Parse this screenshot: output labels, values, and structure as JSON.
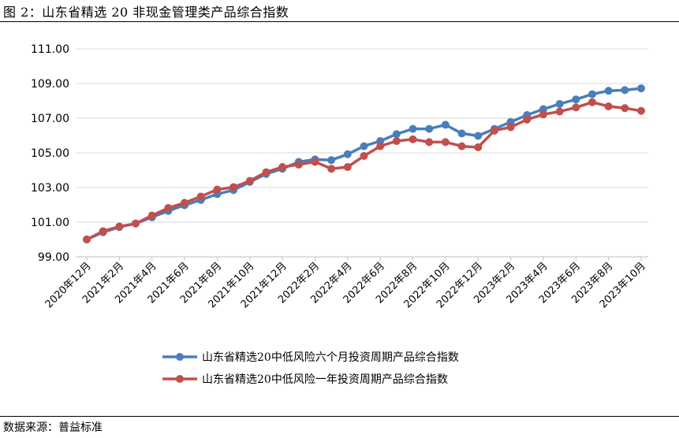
{
  "figure": {
    "title": "图 2：山东省精选 20 非现金管理类产品综合指数",
    "source": "数据来源：普益标准"
  },
  "chart_data": {
    "type": "line",
    "ylim": [
      99.0,
      111.0
    ],
    "y_ticks": [
      "111.00",
      "109.00",
      "107.00",
      "105.00",
      "103.00",
      "101.00",
      "99.00"
    ],
    "x_tick_labels": [
      "2020年12月",
      "2021年2月",
      "2021年4月",
      "2021年6月",
      "2021年8月",
      "2021年10月",
      "2021年12月",
      "2022年2月",
      "2022年4月",
      "2022年6月",
      "2022年8月",
      "2022年10月",
      "2022年12月",
      "2023年2月",
      "2023年4月",
      "2023年6月",
      "2023年8月",
      "2023年10月"
    ],
    "grid": true,
    "legend_position": "bottom",
    "series": [
      {
        "name": "山东省精选20中低风险六个月投资周期产品综合指数",
        "color": "#4a7ebb",
        "values": [
          100.0,
          100.42,
          100.72,
          100.92,
          101.28,
          101.65,
          101.98,
          102.28,
          102.62,
          102.85,
          103.32,
          103.78,
          104.08,
          104.48,
          104.62,
          104.58,
          104.92,
          105.38,
          105.68,
          106.08,
          106.38,
          106.38,
          106.62,
          106.12,
          105.98,
          106.38,
          106.78,
          107.18,
          107.52,
          107.82,
          108.08,
          108.38,
          108.58,
          108.62,
          108.72
        ]
      },
      {
        "name": "山东省精选20中低风险一年投资周期产品综合指数",
        "color": "#c0504d",
        "values": [
          100.0,
          100.48,
          100.75,
          100.92,
          101.38,
          101.82,
          102.12,
          102.48,
          102.88,
          103.02,
          103.38,
          103.88,
          104.18,
          104.32,
          104.48,
          104.08,
          104.18,
          104.82,
          105.38,
          105.68,
          105.78,
          105.62,
          105.62,
          105.38,
          105.32,
          106.28,
          106.48,
          106.92,
          107.22,
          107.38,
          107.62,
          107.92,
          107.68,
          107.58,
          107.42
        ]
      }
    ]
  }
}
